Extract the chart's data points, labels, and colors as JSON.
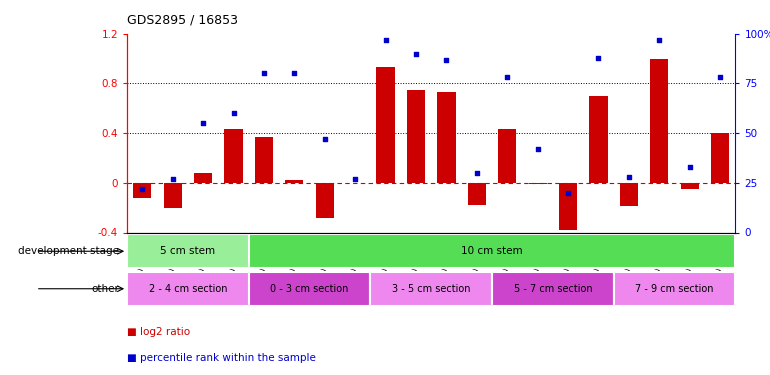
{
  "title": "GDS2895 / 16853",
  "samples": [
    "GSM35570",
    "GSM35571",
    "GSM35721",
    "GSM35725",
    "GSM35565",
    "GSM35567",
    "GSM35568",
    "GSM35569",
    "GSM35726",
    "GSM35727",
    "GSM35728",
    "GSM35729",
    "GSM35978",
    "GSM36004",
    "GSM36011",
    "GSM36012",
    "GSM36013",
    "GSM36014",
    "GSM36015",
    "GSM36016"
  ],
  "log2_ratio": [
    -0.12,
    -0.2,
    0.08,
    0.43,
    0.37,
    0.02,
    -0.28,
    0.0,
    0.93,
    0.75,
    0.73,
    -0.18,
    0.43,
    -0.01,
    -0.38,
    0.7,
    -0.19,
    1.0,
    -0.05,
    0.4
  ],
  "percentile": [
    22,
    27,
    55,
    60,
    80,
    80,
    47,
    27,
    97,
    90,
    87,
    30,
    78,
    42,
    20,
    88,
    28,
    97,
    33,
    78
  ],
  "bar_color": "#cc0000",
  "dot_color": "#0000cc",
  "zero_line_color": "#cc0000",
  "dotted_line_color": "#000000",
  "ylim_left": [
    -0.4,
    1.2
  ],
  "ylim_right": [
    0,
    100
  ],
  "yticks_left": [
    -0.4,
    0.0,
    0.4,
    0.8,
    1.2
  ],
  "ytick_labels_left": [
    "-0.4",
    "0",
    "0.4",
    "0.8",
    "1.2"
  ],
  "yticks_right": [
    0,
    25,
    50,
    75,
    100
  ],
  "ytick_labels_right": [
    "0",
    "25",
    "50",
    "75",
    "100%"
  ],
  "hlines": [
    0.4,
    0.8
  ],
  "dev_stage_groups": [
    {
      "label": "5 cm stem",
      "start": 0,
      "end": 4,
      "color": "#99ee99"
    },
    {
      "label": "10 cm stem",
      "start": 4,
      "end": 20,
      "color": "#55dd55"
    }
  ],
  "other_groups": [
    {
      "label": "2 - 4 cm section",
      "start": 0,
      "end": 4,
      "color": "#ee88ee"
    },
    {
      "label": "0 - 3 cm section",
      "start": 4,
      "end": 8,
      "color": "#cc44cc"
    },
    {
      "label": "3 - 5 cm section",
      "start": 8,
      "end": 12,
      "color": "#ee88ee"
    },
    {
      "label": "5 - 7 cm section",
      "start": 12,
      "end": 16,
      "color": "#cc44cc"
    },
    {
      "label": "7 - 9 cm section",
      "start": 16,
      "end": 20,
      "color": "#ee88ee"
    }
  ],
  "legend_items": [
    {
      "label": "log2 ratio",
      "color": "#cc0000"
    },
    {
      "label": "percentile rank within the sample",
      "color": "#0000cc"
    }
  ],
  "row_labels": [
    "development stage",
    "other"
  ],
  "background_color": "#ffffff"
}
